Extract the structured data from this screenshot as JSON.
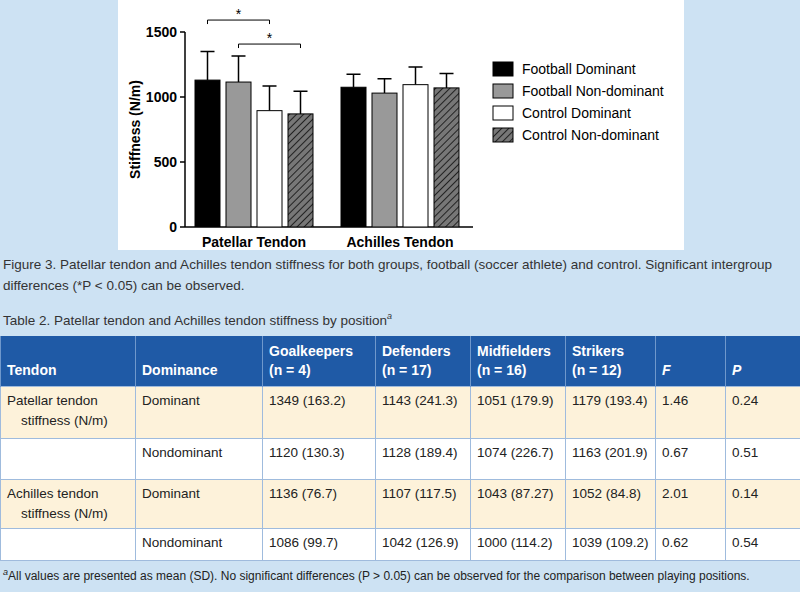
{
  "chart_data": {
    "type": "bar",
    "y_label": "Stiffness (N/m)",
    "categories": [
      "Patellar Tendon",
      "Achilles Tendon"
    ],
    "series": [
      {
        "name": "Football Dominant",
        "color": "#000000",
        "values": [
          1130,
          1075
        ],
        "errors": [
          220,
          100
        ]
      },
      {
        "name": "Football Non-dominant",
        "color": "#999999",
        "values": [
          1115,
          1030
        ],
        "errors": [
          200,
          110
        ]
      },
      {
        "name": "Control Dominant",
        "color": "#ffffff",
        "values": [
          895,
          1095
        ],
        "errors": [
          190,
          135
        ]
      },
      {
        "name": "Control Non-dominant",
        "color": "#777777",
        "values": [
          870,
          1070
        ],
        "errors": [
          175,
          110
        ]
      }
    ],
    "ylim": [
      0,
      1500
    ],
    "yticks": [
      0,
      500,
      1000,
      1500
    ],
    "legend": "right",
    "annotations": [
      {
        "text": "*",
        "category": "Patellar Tendon",
        "between": [
          "Football Dominant",
          "Control Dominant"
        ]
      },
      {
        "text": "*",
        "category": "Patellar Tendon",
        "between": [
          "Football Non-dominant",
          "Control Non-dominant"
        ]
      }
    ]
  },
  "figure_caption": "Figure 3.  Patellar tendon and Achilles tendon stiffness for both groups, football (soccer athlete) and control. Significant intergroup differences (*P < 0.05) can be observed.",
  "table": {
    "title": "Table 2.  Patellar tendon and Achilles tendon stiffness by position",
    "title_note": "a",
    "header": [
      [
        "Tendon"
      ],
      [
        "Dominance"
      ],
      [
        "Goalkeepers",
        "(n = 4)"
      ],
      [
        "Defenders",
        "(n = 17)"
      ],
      [
        "Midfielders",
        "(n = 16)"
      ],
      [
        "Strikers",
        "(n = 12)"
      ],
      [
        "F"
      ],
      [
        "P"
      ]
    ],
    "rows": [
      [
        "Patellar tendon stiffness (N/m)",
        "Dominant",
        "1349 (163.2)",
        "1143 (241.3)",
        "1051 (179.9)",
        "1179 (193.4)",
        "1.46",
        "0.24"
      ],
      [
        null,
        "Nondominant",
        "1120 (130.3)",
        "1128 (189.4)",
        "1074 (226.7)",
        "1163 (201.9)",
        "0.67",
        "0.51"
      ],
      [
        "Achilles tendon stiffness (N/m)",
        "Dominant",
        "1136 (76.7)",
        "1107 (117.5)",
        "1043 (87.27)",
        "1052 (84.8)",
        "2.01",
        "0.14"
      ],
      [
        null,
        "Nondominant",
        "1086 (99.7)",
        "1042 (126.9)",
        "1000 (114.2)",
        "1039 (109.2)",
        "0.62",
        "0.54"
      ]
    ],
    "footnote_mark": "a",
    "footnote": "All values are presented as mean (SD). No significant differences (P > 0.05) can be observed for the comparison between playing positions."
  }
}
